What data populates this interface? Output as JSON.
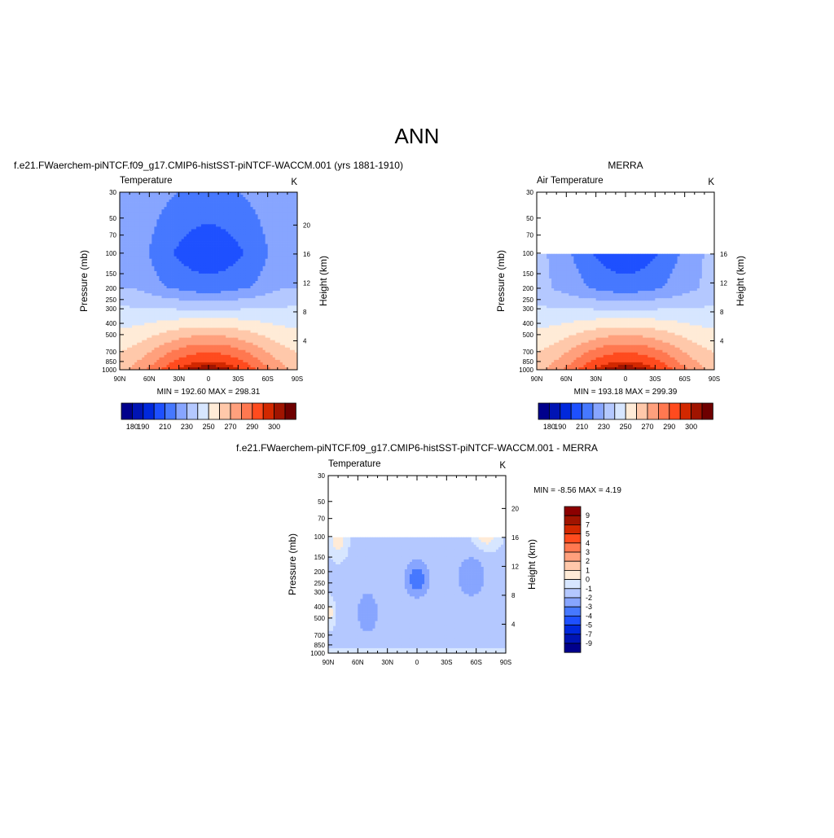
{
  "main_title": "ANN",
  "colors": {
    "model_obs": [
      "#00008c",
      "#0014b4",
      "#0028dc",
      "#1e50ff",
      "#4678ff",
      "#87a5ff",
      "#b4c8ff",
      "#d7e6ff",
      "#ffebd7",
      "#ffc8aa",
      "#ffa07d",
      "#ff7850",
      "#ff4b1e",
      "#d22800",
      "#a01400",
      "#6e0000"
    ],
    "diff": [
      "#00008c",
      "#0014b4",
      "#0028dc",
      "#1e50ff",
      "#4678ff",
      "#87a5ff",
      "#b4c8ff",
      "#d7e6ff",
      "#ffebd7",
      "#ffc8aa",
      "#ffa07d",
      "#ff7850",
      "#ff4b1e",
      "#d22800",
      "#a01400",
      "#8c0000"
    ]
  },
  "panels": [
    {
      "title": "f.e21.FWaerchem-piNTCF.f09_g17.CMIP6-histSST-piNTCF-WACCM.001 (yrs 1881-1910)",
      "left_label": "Temperature",
      "unit": "K",
      "minmax": "MIN = 192.60  MAX = 298.31",
      "colorbar_labels": [
        "180",
        "190",
        "210",
        "230",
        "250",
        "270",
        "290",
        "300"
      ]
    },
    {
      "title": "MERRA",
      "left_label": "Air Temperature",
      "unit": "K",
      "minmax": "MIN = 193.18  MAX = 299.39",
      "colorbar_labels": [
        "180",
        "190",
        "210",
        "230",
        "250",
        "270",
        "290",
        "300"
      ]
    },
    {
      "title": "f.e21.FWaerchem-piNTCF.f09_g17.CMIP6-histSST-piNTCF-WACCM.001 - MERRA",
      "left_label": "Temperature",
      "unit": "K",
      "minmax": "MIN =  -8.56  MAX =   4.19",
      "colorbar_labels": [
        "9",
        "7",
        "5",
        "4",
        "3",
        "2",
        "1",
        "0",
        "-1",
        "-2",
        "-3",
        "-4",
        "-5",
        "-7",
        "-9"
      ]
    }
  ],
  "chart_data": [
    {
      "type": "heatmap",
      "title": "f.e21.FWaerchem-piNTCF.f09_g17.CMIP6-histSST-piNTCF-WACCM.001 (yrs 1881-1910)",
      "xlabel": "",
      "ylabel": "Pressure (mb)",
      "ylabel_right": "Height (km)",
      "x_ticks": [
        "90N",
        "60N",
        "30N",
        "0",
        "30S",
        "60S",
        "90S"
      ],
      "y_ticks": [
        30,
        50,
        70,
        100,
        150,
        200,
        250,
        300,
        400,
        500,
        700,
        850,
        1000
      ],
      "y2_ticks": [
        20,
        16,
        12,
        8,
        4
      ],
      "ylim": [
        1000,
        30
      ],
      "y_scale": "log",
      "z_min": 192.6,
      "z_max": 298.31,
      "levels": [
        180,
        185,
        190,
        200,
        210,
        220,
        230,
        240,
        250,
        260,
        270,
        280,
        290,
        295,
        300
      ]
    },
    {
      "type": "heatmap",
      "title": "MERRA",
      "xlabel": "",
      "ylabel": "Pressure (mb)",
      "ylabel_right": "Height (km)",
      "x_ticks": [
        "90N",
        "60N",
        "30N",
        "0",
        "30S",
        "60S",
        "90S"
      ],
      "y_ticks": [
        30,
        50,
        70,
        100,
        150,
        200,
        250,
        300,
        400,
        500,
        700,
        850,
        1000
      ],
      "y2_ticks": [
        16,
        12,
        8,
        4
      ],
      "ylim": [
        1000,
        30
      ],
      "y_scale": "log",
      "data_top_mb": 100,
      "z_min": 193.18,
      "z_max": 299.39,
      "levels": [
        180,
        185,
        190,
        200,
        210,
        220,
        230,
        240,
        250,
        260,
        270,
        280,
        290,
        295,
        300
      ]
    },
    {
      "type": "heatmap",
      "title": "f.e21.FWaerchem-piNTCF.f09_g17.CMIP6-histSST-piNTCF-WACCM.001 - MERRA",
      "xlabel": "",
      "ylabel": "Pressure (mb)",
      "ylabel_right": "Height (km)",
      "x_ticks": [
        "90N",
        "60N",
        "30N",
        "0",
        "30S",
        "60S",
        "90S"
      ],
      "y_ticks": [
        30,
        50,
        70,
        100,
        150,
        200,
        250,
        300,
        400,
        500,
        700,
        850,
        1000
      ],
      "y2_ticks": [
        20,
        16,
        12,
        8,
        4
      ],
      "ylim": [
        1000,
        30
      ],
      "y_scale": "log",
      "data_top_mb": 100,
      "z_min": -8.56,
      "z_max": 4.19,
      "levels": [
        -9,
        -7,
        -5,
        -4,
        -3,
        -2,
        -1,
        0,
        1,
        2,
        3,
        4,
        5,
        7,
        9
      ]
    }
  ]
}
